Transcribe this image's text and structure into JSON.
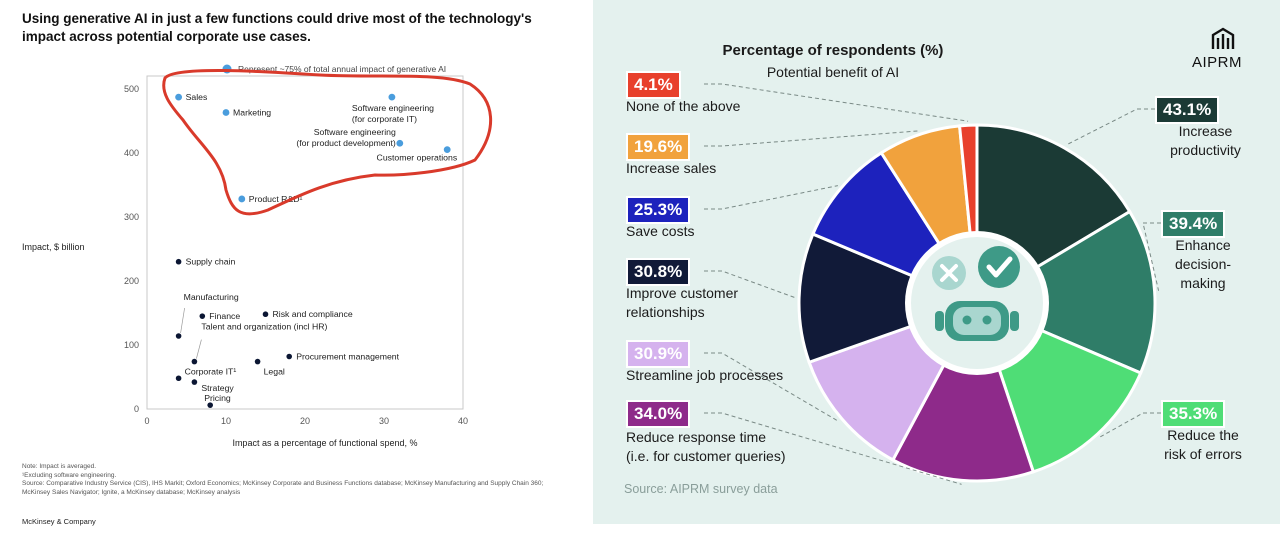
{
  "left_panel": {
    "title": "Using generative AI in just a few functions could drive most of the technology's impact across potential corporate use cases.",
    "ylabel": "Impact, $ billion",
    "xlabel": "Impact as a percentage of functional spend, %",
    "legend_note": "Represent ~75% of total annual impact of generative AI",
    "notes": [
      "Note: Impact is averaged.",
      "¹Excluding software engineering.",
      "Source: Comparative Industry Service (CIS), IHS Markit; Oxford Economics; McKinsey Corporate and Business Functions database; McKinsey Manufacturing and Supply Chain 360; McKinsey Sales Navigator; Ignite, a McKinsey database; McKinsey analysis"
    ],
    "footer": "McKinsey & Company"
  },
  "right_panel": {
    "title": "Percentage of respondents (%)",
    "subtitle": "Potential benefit of AI",
    "brand": "AIPRM",
    "source": "Source: AIPRM survey data"
  },
  "chart_data": [
    {
      "type": "scatter",
      "xlabel": "Impact as a percentage of functional spend, %",
      "ylabel": "Impact, $ billion",
      "xlim": [
        0,
        40
      ],
      "ylim": [
        0,
        520
      ],
      "xticks": [
        0,
        10,
        20,
        30,
        40
      ],
      "yticks": [
        0,
        100,
        200,
        300,
        400,
        500
      ],
      "grid": false,
      "points": [
        {
          "label": "Sales",
          "x": 4,
          "y": 487,
          "highlight": true
        },
        {
          "label": "Marketing",
          "x": 10,
          "y": 463,
          "highlight": true
        },
        {
          "label": "Software engineering\n(for corporate IT)",
          "x": 31,
          "y": 487,
          "highlight": true
        },
        {
          "label": "Software engineering\n(for product development)",
          "x": 32,
          "y": 415,
          "highlight": true
        },
        {
          "label": "Customer operations",
          "x": 38,
          "y": 405,
          "highlight": true
        },
        {
          "label": "Product R&D¹",
          "x": 12,
          "y": 328,
          "highlight": true
        },
        {
          "label": "Supply chain",
          "x": 4,
          "y": 230,
          "highlight": false
        },
        {
          "label": "Finance",
          "x": 7,
          "y": 145,
          "highlight": false
        },
        {
          "label": "Risk and compliance",
          "x": 15,
          "y": 148,
          "highlight": false
        },
        {
          "label": "Manufacturing",
          "x": 4,
          "y": 114,
          "highlight": false
        },
        {
          "label": "Talent and organization (incl HR)",
          "x": 6,
          "y": 74,
          "highlight": false
        },
        {
          "label": "Procurement management",
          "x": 18,
          "y": 82,
          "highlight": false
        },
        {
          "label": "Legal",
          "x": 14,
          "y": 74,
          "highlight": false
        },
        {
          "label": "Corporate IT¹",
          "x": 4,
          "y": 48,
          "highlight": false
        },
        {
          "label": "Strategy",
          "x": 6,
          "y": 42,
          "highlight": false
        },
        {
          "label": "Pricing",
          "x": 8,
          "y": 6,
          "highlight": false
        }
      ],
      "colors": {
        "highlight": "#4a9ddd",
        "normal": "#0b1633",
        "annotation": "#d93a2b"
      }
    },
    {
      "type": "pie",
      "title": "Percentage of respondents (%)",
      "subtitle": "Potential benefit of AI",
      "slices": [
        {
          "label": "Increase productivity",
          "value": 43.1,
          "text": "43.1%",
          "color": "#1b3a35"
        },
        {
          "label": "Enhance decision-making",
          "value": 39.4,
          "text": "39.4%",
          "color": "#2f7d68"
        },
        {
          "label": "Reduce the risk of errors",
          "value": 35.3,
          "text": "35.3%",
          "color": "#4fdd76"
        },
        {
          "label": "Reduce response time (i.e. for customer queries)",
          "value": 34.0,
          "text": "34.0%",
          "color": "#8e2a8a"
        },
        {
          "label": "Streamline job processes",
          "value": 30.9,
          "text": "30.9%",
          "color": "#d5b2ee"
        },
        {
          "label": "Improve customer relationships",
          "value": 30.8,
          "text": "30.8%",
          "color": "#111a38"
        },
        {
          "label": "Save costs",
          "value": 25.3,
          "text": "25.3%",
          "color": "#1d22bd"
        },
        {
          "label": "Increase sales",
          "value": 19.6,
          "text": "19.6%",
          "color": "#f1a23d"
        },
        {
          "label": "None of the above",
          "value": 4.1,
          "text": "4.1%",
          "color": "#e8402c"
        }
      ]
    }
  ]
}
